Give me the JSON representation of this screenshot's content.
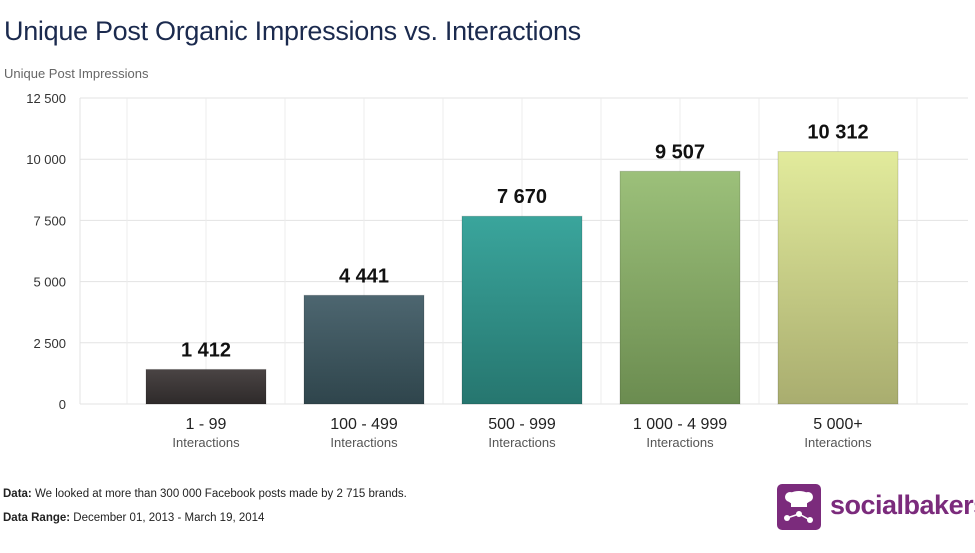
{
  "header": {
    "title": "Unique Post Organic Impressions vs. Interactions",
    "ylabel": "Unique Post Impressions"
  },
  "chart_data": {
    "type": "bar",
    "categories": [
      "1 - 99",
      "100 - 499",
      "500 - 999",
      "1 000 - 4 999",
      "5 000+"
    ],
    "category_sublabel": "Interactions",
    "values": [
      1412,
      4441,
      7670,
      9507,
      10312
    ],
    "value_labels": [
      "1 412",
      "4 441",
      "7 670",
      "9 507",
      "10 312"
    ],
    "ylabel": "Unique Post Impressions",
    "ylim": [
      0,
      12500
    ],
    "yticks": [
      0,
      2500,
      5000,
      7500,
      10000,
      12500
    ],
    "ytick_labels": [
      "0",
      "2 500",
      "5 000",
      "7 500",
      "10 000",
      "12 500"
    ],
    "grid": true,
    "bar_colors": [
      [
        "#4a4444",
        "#2e2a2a"
      ],
      [
        "#4d6670",
        "#2f454c"
      ],
      [
        "#3aa59c",
        "#26766f"
      ],
      [
        "#9cc07a",
        "#6b8c50"
      ],
      [
        "#e2eb9c",
        "#a9ad6f"
      ]
    ]
  },
  "footer": {
    "data_label": "Data:",
    "data_text": " We looked at more than 300 000 Facebook posts made by 2 715 brands.",
    "range_label": "Data Range:",
    "range_text": " December 01, 2013 - March 19, 2014"
  },
  "logo": {
    "text": "socialbakers",
    "color": "#7b2b7c"
  }
}
